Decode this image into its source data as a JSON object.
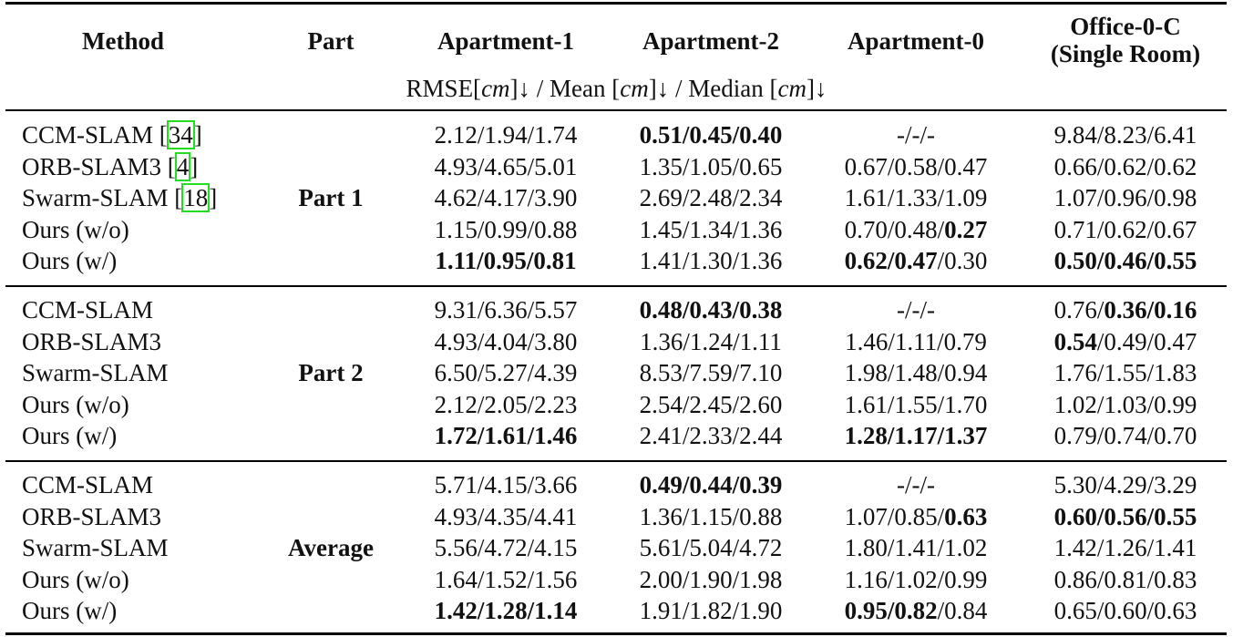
{
  "table": {
    "headers": {
      "method": "Method",
      "part": "Part",
      "apt1": "Apartment-1",
      "apt2": "Apartment-2",
      "apt0": "Apartment-0",
      "office_line1": "Office-0-C",
      "office_line2": "(Single Room)"
    },
    "metric_line": {
      "rmse": "RMSE[",
      "unit": "cm",
      "mean": "]↓ / Mean [",
      "median": "]↓ / Median [",
      "end": "]↓"
    },
    "groups": [
      {
        "part": "Part 1",
        "rows": [
          {
            "method": "CCM-SLAM [",
            "ref": "34",
            "method_end": "]",
            "apt1": [
              [
                "2.12/1.94/1.74",
                false
              ]
            ],
            "apt2": [
              [
                "0.51/0.45/0.40",
                true
              ]
            ],
            "apt0": [
              [
                "-/-/-",
                false
              ]
            ],
            "office": [
              [
                "9.84/8.23/6.41",
                false
              ]
            ]
          },
          {
            "method": "ORB-SLAM3 [",
            "ref": "4",
            "method_end": "]",
            "apt1": [
              [
                "4.93/4.65/5.01",
                false
              ]
            ],
            "apt2": [
              [
                "1.35/1.05/0.65",
                false
              ]
            ],
            "apt0": [
              [
                "0.67/0.58/0.47",
                false
              ]
            ],
            "office": [
              [
                "0.66/0.62/0.62",
                false
              ]
            ]
          },
          {
            "method": "Swarm-SLAM [",
            "ref": "18",
            "method_end": "]",
            "apt1": [
              [
                "4.62/4.17/3.90",
                false
              ]
            ],
            "apt2": [
              [
                "2.69/2.48/2.34",
                false
              ]
            ],
            "apt0": [
              [
                "1.61/1.33/1.09",
                false
              ]
            ],
            "office": [
              [
                "1.07/0.96/0.98",
                false
              ]
            ]
          },
          {
            "method": "Ours (w/o)",
            "apt1": [
              [
                "1.15/0.99/0.88",
                false
              ]
            ],
            "apt2": [
              [
                "1.45/1.34/1.36",
                false
              ]
            ],
            "apt0": [
              [
                "0.70/0.48/",
                false
              ],
              [
                "0.27",
                true
              ]
            ],
            "office": [
              [
                "0.71/0.62/0.67",
                false
              ]
            ]
          },
          {
            "method": "Ours (w/)",
            "apt1": [
              [
                "1.11/0.95/0.81",
                true
              ]
            ],
            "apt2": [
              [
                "1.41/1.30/1.36",
                false
              ]
            ],
            "apt0": [
              [
                "0.62/0.47",
                true
              ],
              [
                "/0.30",
                false
              ]
            ],
            "office": [
              [
                "0.50/0.46/0.55",
                true
              ]
            ]
          }
        ]
      },
      {
        "part": "Part 2",
        "rows": [
          {
            "method": "CCM-SLAM",
            "apt1": [
              [
                "9.31/6.36/5.57",
                false
              ]
            ],
            "apt2": [
              [
                "0.48/0.43/0.38",
                true
              ]
            ],
            "apt0": [
              [
                "-/-/-",
                false
              ]
            ],
            "office": [
              [
                "0.76/",
                false
              ],
              [
                "0.36/0.16",
                true
              ]
            ]
          },
          {
            "method": "ORB-SLAM3",
            "apt1": [
              [
                "4.93/4.04/3.80",
                false
              ]
            ],
            "apt2": [
              [
                "1.36/1.24/1.11",
                false
              ]
            ],
            "apt0": [
              [
                "1.46/1.11/0.79",
                false
              ]
            ],
            "office": [
              [
                "0.54",
                true
              ],
              [
                "/0.49/0.47",
                false
              ]
            ]
          },
          {
            "method": "Swarm-SLAM",
            "apt1": [
              [
                "6.50/5.27/4.39",
                false
              ]
            ],
            "apt2": [
              [
                "8.53/7.59/7.10",
                false
              ]
            ],
            "apt0": [
              [
                "1.98/1.48/0.94",
                false
              ]
            ],
            "office": [
              [
                "1.76/1.55/1.83",
                false
              ]
            ]
          },
          {
            "method": "Ours (w/o)",
            "apt1": [
              [
                "2.12/2.05/2.23",
                false
              ]
            ],
            "apt2": [
              [
                "2.54/2.45/2.60",
                false
              ]
            ],
            "apt0": [
              [
                "1.61/1.55/1.70",
                false
              ]
            ],
            "office": [
              [
                "1.02/1.03/0.99",
                false
              ]
            ]
          },
          {
            "method": "Ours (w/)",
            "apt1": [
              [
                "1.72/1.61/1.46",
                true
              ]
            ],
            "apt2": [
              [
                "2.41/2.33/2.44",
                false
              ]
            ],
            "apt0": [
              [
                "1.28/1.17/1.37",
                true
              ]
            ],
            "office": [
              [
                "0.79/0.74/0.70",
                false
              ]
            ]
          }
        ]
      },
      {
        "part": "Average",
        "rows": [
          {
            "method": "CCM-SLAM",
            "apt1": [
              [
                "5.71/4.15/3.66",
                false
              ]
            ],
            "apt2": [
              [
                "0.49/0.44/0.39",
                true
              ]
            ],
            "apt0": [
              [
                "-/-/-",
                false
              ]
            ],
            "office": [
              [
                "5.30/4.29/3.29",
                false
              ]
            ]
          },
          {
            "method": "ORB-SLAM3",
            "apt1": [
              [
                "4.93/4.35/4.41",
                false
              ]
            ],
            "apt2": [
              [
                "1.36/1.15/0.88",
                false
              ]
            ],
            "apt0": [
              [
                "1.07/0.85/",
                false
              ],
              [
                "0.63",
                true
              ]
            ],
            "office": [
              [
                "0.60/0.56/0.55",
                true
              ]
            ]
          },
          {
            "method": "Swarm-SLAM",
            "apt1": [
              [
                "5.56/4.72/4.15",
                false
              ]
            ],
            "apt2": [
              [
                "5.61/5.04/4.72",
                false
              ]
            ],
            "apt0": [
              [
                "1.80/1.41/1.02",
                false
              ]
            ],
            "office": [
              [
                "1.42/1.26/1.41",
                false
              ]
            ]
          },
          {
            "method": "Ours (w/o)",
            "apt1": [
              [
                "1.64/1.52/1.56",
                false
              ]
            ],
            "apt2": [
              [
                "2.00/1.90/1.98",
                false
              ]
            ],
            "apt0": [
              [
                "1.16/1.02/0.99",
                false
              ]
            ],
            "office": [
              [
                "0.86/0.81/0.83",
                false
              ]
            ]
          },
          {
            "method": "Ours (w/)",
            "apt1": [
              [
                "1.42/1.28/1.14",
                true
              ]
            ],
            "apt2": [
              [
                "1.91/1.82/1.90",
                false
              ]
            ],
            "apt0": [
              [
                "0.95/0.82",
                true
              ],
              [
                "/0.84",
                false
              ]
            ],
            "office": [
              [
                "0.65/0.60/0.63",
                false
              ]
            ]
          }
        ]
      }
    ]
  }
}
